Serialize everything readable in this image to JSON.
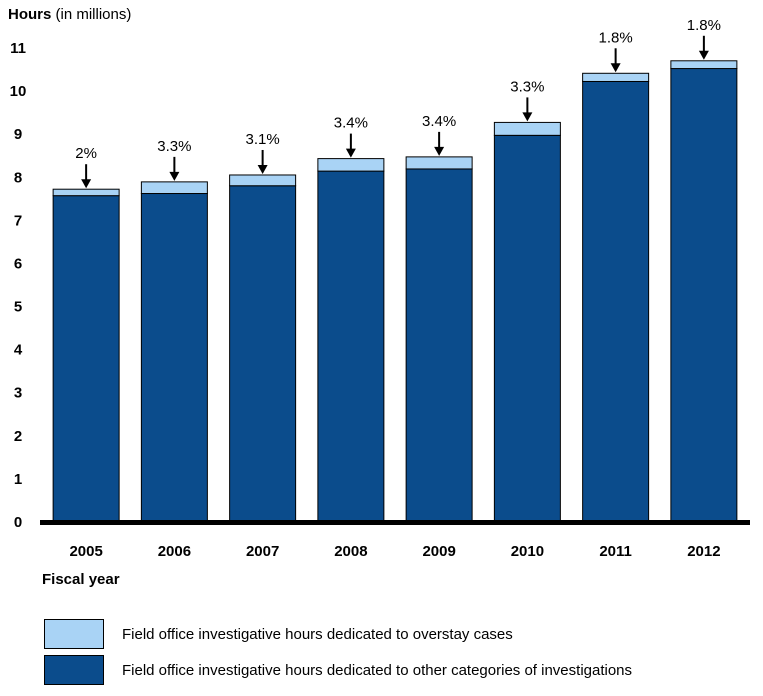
{
  "chart_data": {
    "type": "bar",
    "stacked": true,
    "ylabel_bold": "Hours",
    "ylabel_rest": " (in millions)",
    "xlabel": "Fiscal year",
    "ylim": [
      0,
      11
    ],
    "yticks": [
      0,
      1,
      2,
      3,
      4,
      5,
      6,
      7,
      8,
      9,
      10,
      11
    ],
    "categories": [
      "2005",
      "2006",
      "2007",
      "2008",
      "2009",
      "2010",
      "2011",
      "2012"
    ],
    "series": [
      {
        "name": "Field office investigative hours dedicated to other categories of investigations",
        "color": "#0b4c8c",
        "values": [
          7.55,
          7.6,
          7.78,
          8.12,
          8.17,
          8.95,
          10.2,
          10.5
        ]
      },
      {
        "name": "Field office investigative hours dedicated to overstay cases",
        "color": "#a9d3f5",
        "values": [
          0.15,
          0.27,
          0.25,
          0.29,
          0.28,
          0.3,
          0.19,
          0.18
        ]
      }
    ],
    "annotations": [
      "2%",
      "3.3%",
      "3.1%",
      "3.4%",
      "3.4%",
      "3.3%",
      "1.8%",
      "1.8%"
    ],
    "grid": false
  },
  "legend": {
    "items": [
      {
        "label": "Field office investigative hours dedicated to overstay cases",
        "color": "#a9d3f5"
      },
      {
        "label": "Field office investigative hours dedicated to other categories of investigations",
        "color": "#0b4c8c"
      }
    ]
  }
}
